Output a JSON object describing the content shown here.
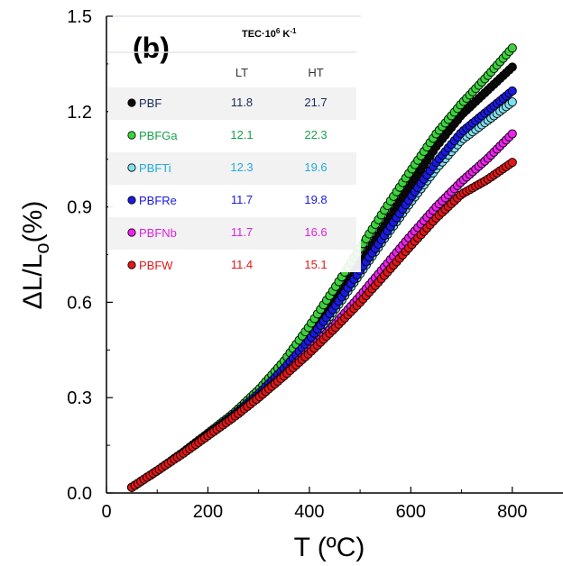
{
  "chart_data": {
    "type": "scatter",
    "panel_label": "(b)",
    "xlabel": "T (ºC)",
    "ylabel_main": "ΔL/L",
    "ylabel_sub": "o",
    "ylabel_unit": "(%)",
    "xlim": [
      0,
      900
    ],
    "ylim": [
      0.0,
      1.5
    ],
    "xticks": [
      0,
      200,
      400,
      600,
      800
    ],
    "xtick_labels": [
      "0",
      "200",
      "400",
      "600",
      "800"
    ],
    "yticks": [
      0.0,
      0.3,
      0.6,
      0.9,
      1.2,
      1.5
    ],
    "ytick_labels": [
      "0.0",
      "0.3",
      "0.6",
      "0.9",
      "1.2",
      "1.5"
    ],
    "grid": false,
    "table": {
      "title_main": "TEC·10",
      "title_sup": "6",
      "title_unit": " K",
      "title_unit_sup": "-1",
      "columns": [
        "LT",
        "HT"
      ],
      "rows": [
        {
          "name": "PBF",
          "lt": "11.8",
          "ht": "21.7"
        },
        {
          "name": "PBFGa",
          "lt": "12.1",
          "ht": "22.3"
        },
        {
          "name": "PBFTi",
          "lt": "12.3",
          "ht": "19.6"
        },
        {
          "name": "PBFRe",
          "lt": "11.7",
          "ht": "19.8"
        },
        {
          "name": "PBFNb",
          "lt": "11.7",
          "ht": "16.6"
        },
        {
          "name": "PBFW",
          "lt": "11.4",
          "ht": "15.1"
        }
      ]
    },
    "series": [
      {
        "name": "PBF",
        "color": "#0a0a0a",
        "text_color": "#1a2a5a",
        "points": [
          [
            50,
            0.018
          ],
          [
            100,
            0.07
          ],
          [
            150,
            0.125
          ],
          [
            200,
            0.185
          ],
          [
            250,
            0.245
          ],
          [
            300,
            0.315
          ],
          [
            350,
            0.395
          ],
          [
            400,
            0.49
          ],
          [
            450,
            0.6
          ],
          [
            500,
            0.72
          ],
          [
            550,
            0.845
          ],
          [
            600,
            0.97
          ],
          [
            650,
            1.09
          ],
          [
            700,
            1.19
          ],
          [
            750,
            1.265
          ],
          [
            800,
            1.34
          ]
        ]
      },
      {
        "name": "PBFGa",
        "color": "#3cd23c",
        "text_color": "#1aa04a",
        "points": [
          [
            50,
            0.018
          ],
          [
            100,
            0.07
          ],
          [
            150,
            0.127
          ],
          [
            200,
            0.188
          ],
          [
            250,
            0.25
          ],
          [
            300,
            0.325
          ],
          [
            350,
            0.415
          ],
          [
            400,
            0.525
          ],
          [
            450,
            0.645
          ],
          [
            500,
            0.77
          ],
          [
            550,
            0.895
          ],
          [
            600,
            1.015
          ],
          [
            650,
            1.13
          ],
          [
            700,
            1.225
          ],
          [
            750,
            1.31
          ],
          [
            800,
            1.4
          ]
        ]
      },
      {
        "name": "PBFTi",
        "color": "#7fe0ee",
        "text_color": "#22aadd",
        "points": [
          [
            50,
            0.018
          ],
          [
            100,
            0.07
          ],
          [
            150,
            0.125
          ],
          [
            200,
            0.183
          ],
          [
            250,
            0.242
          ],
          [
            300,
            0.31
          ],
          [
            350,
            0.388
          ],
          [
            400,
            0.475
          ],
          [
            450,
            0.575
          ],
          [
            500,
            0.69
          ],
          [
            550,
            0.805
          ],
          [
            600,
            0.915
          ],
          [
            650,
            1.02
          ],
          [
            700,
            1.11
          ],
          [
            750,
            1.17
          ],
          [
            800,
            1.23
          ]
        ]
      },
      {
        "name": "PBFRe",
        "color": "#1a1ae0",
        "text_color": "#1a1ae0",
        "points": [
          [
            50,
            0.018
          ],
          [
            100,
            0.07
          ],
          [
            150,
            0.125
          ],
          [
            200,
            0.184
          ],
          [
            250,
            0.244
          ],
          [
            300,
            0.312
          ],
          [
            350,
            0.392
          ],
          [
            400,
            0.482
          ],
          [
            450,
            0.585
          ],
          [
            500,
            0.7
          ],
          [
            550,
            0.815
          ],
          [
            600,
            0.93
          ],
          [
            650,
            1.04
          ],
          [
            700,
            1.135
          ],
          [
            750,
            1.2
          ],
          [
            800,
            1.265
          ]
        ]
      },
      {
        "name": "PBFNb",
        "color": "#ee22ee",
        "text_color": "#dd22dd",
        "points": [
          [
            50,
            0.018
          ],
          [
            100,
            0.07
          ],
          [
            150,
            0.124
          ],
          [
            200,
            0.181
          ],
          [
            250,
            0.239
          ],
          [
            300,
            0.303
          ],
          [
            350,
            0.372
          ],
          [
            400,
            0.448
          ],
          [
            450,
            0.53
          ],
          [
            500,
            0.62
          ],
          [
            550,
            0.715
          ],
          [
            600,
            0.81
          ],
          [
            650,
            0.9
          ],
          [
            700,
            0.98
          ],
          [
            750,
            1.05
          ],
          [
            800,
            1.13
          ]
        ]
      },
      {
        "name": "PBFW",
        "color": "#e01818",
        "text_color": "#e01818",
        "points": [
          [
            50,
            0.018
          ],
          [
            100,
            0.07
          ],
          [
            150,
            0.123
          ],
          [
            200,
            0.18
          ],
          [
            250,
            0.237
          ],
          [
            300,
            0.3
          ],
          [
            350,
            0.368
          ],
          [
            400,
            0.44
          ],
          [
            450,
            0.518
          ],
          [
            500,
            0.6
          ],
          [
            550,
            0.688
          ],
          [
            600,
            0.778
          ],
          [
            650,
            0.865
          ],
          [
            700,
            0.94
          ],
          [
            750,
            0.985
          ],
          [
            800,
            1.04
          ]
        ]
      }
    ]
  }
}
